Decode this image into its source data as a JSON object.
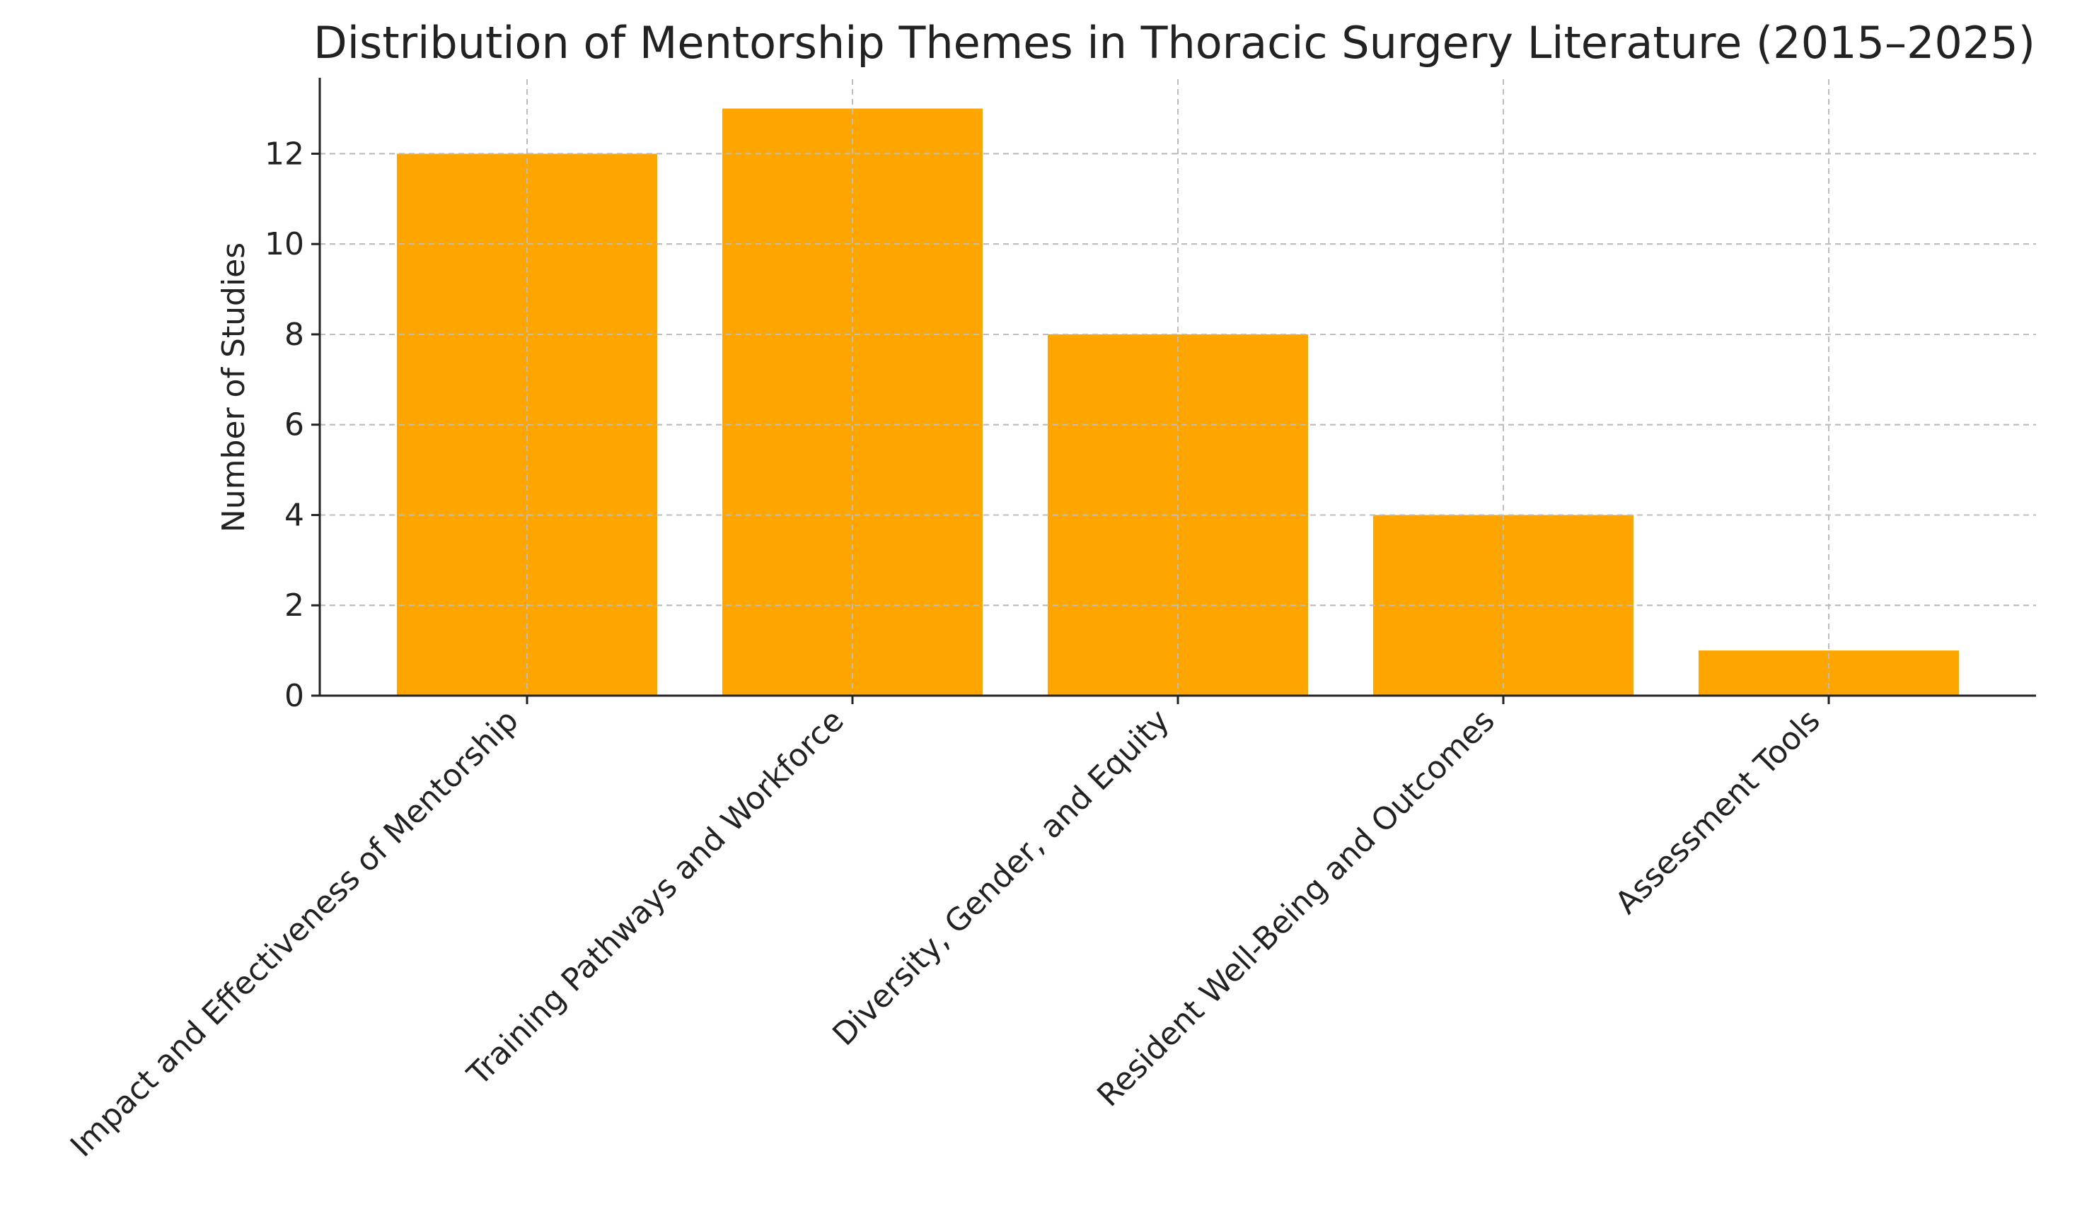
{
  "chart_data": {
    "type": "bar",
    "title": "Distribution of Mentorship Themes in Thoracic Surgery Literature (2015–2025)",
    "xlabel": "",
    "ylabel": "Number of Studies",
    "categories": [
      "Impact and Effectiveness of Mentorship",
      "Training Pathways and Workforce",
      "Diversity, Gender, and Equity",
      "Resident Well-Being and Outcomes",
      "Assessment Tools"
    ],
    "values": [
      12,
      13,
      8,
      4,
      1
    ],
    "ylim": [
      0,
      13.65
    ],
    "yticks": [
      0,
      2,
      4,
      6,
      8,
      10,
      12
    ],
    "grid": true,
    "bar_color": "#FFA500"
  }
}
